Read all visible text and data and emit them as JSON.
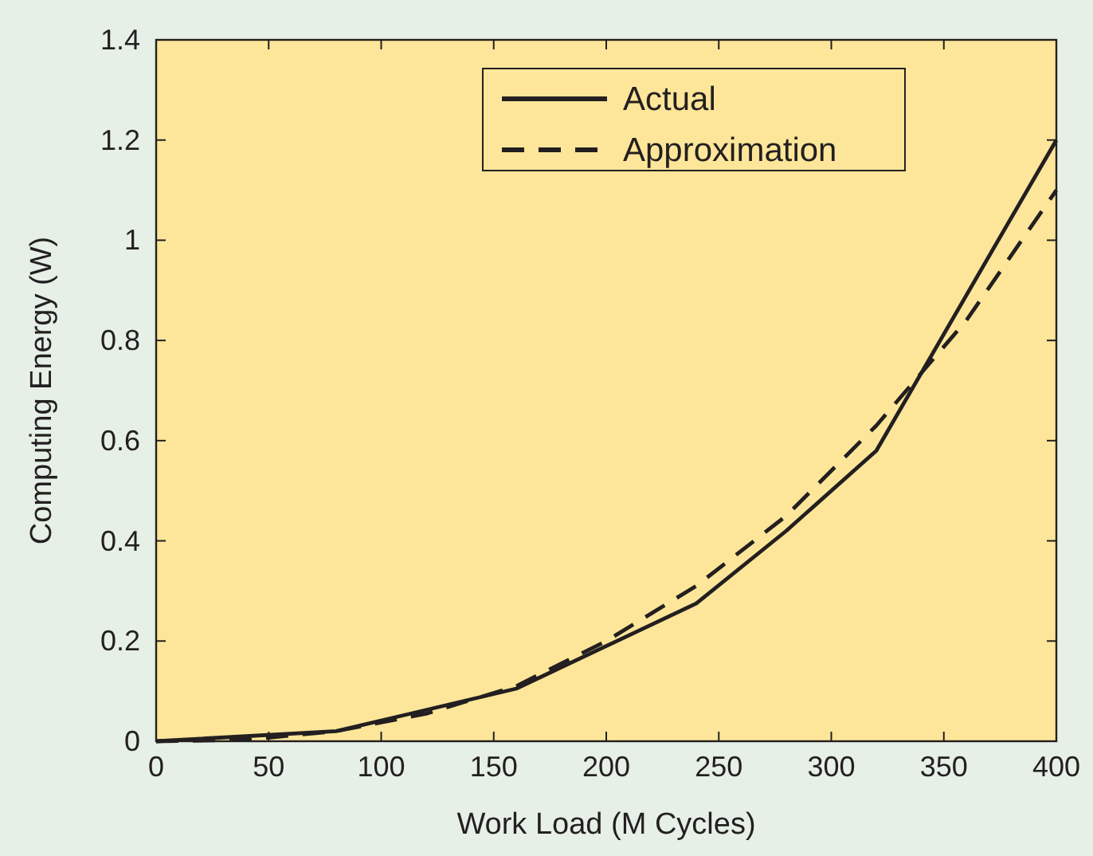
{
  "chart_data": {
    "type": "line",
    "xlabel": "Work Load (M Cycles)",
    "ylabel": "Computing Energy (W)",
    "xlim": [
      0,
      400
    ],
    "xticks": [
      0,
      50,
      100,
      150,
      200,
      250,
      300,
      350,
      400
    ],
    "ylim": [
      0,
      1.4
    ],
    "yticks": [
      0,
      0.2,
      0.4,
      0.6,
      0.8,
      1,
      1.2,
      1.4
    ],
    "grid": false,
    "legend": "top right",
    "series": [
      {
        "name": "Actual",
        "color": "#231f20",
        "line_style": "solid",
        "x": [
          0,
          80,
          160,
          240,
          280,
          320,
          400
        ],
        "values": [
          0,
          0.02,
          0.105,
          0.275,
          0.42,
          0.58,
          1.2
        ]
      },
      {
        "name": "Approximation",
        "color": "#231f20",
        "line_style": "dashed",
        "x": [
          0,
          40,
          80,
          120,
          160,
          200,
          240,
          280,
          320,
          360,
          400
        ],
        "values": [
          0,
          0.003,
          0.02,
          0.055,
          0.11,
          0.2,
          0.31,
          0.45,
          0.63,
          0.84,
          1.1
        ]
      }
    ]
  }
}
